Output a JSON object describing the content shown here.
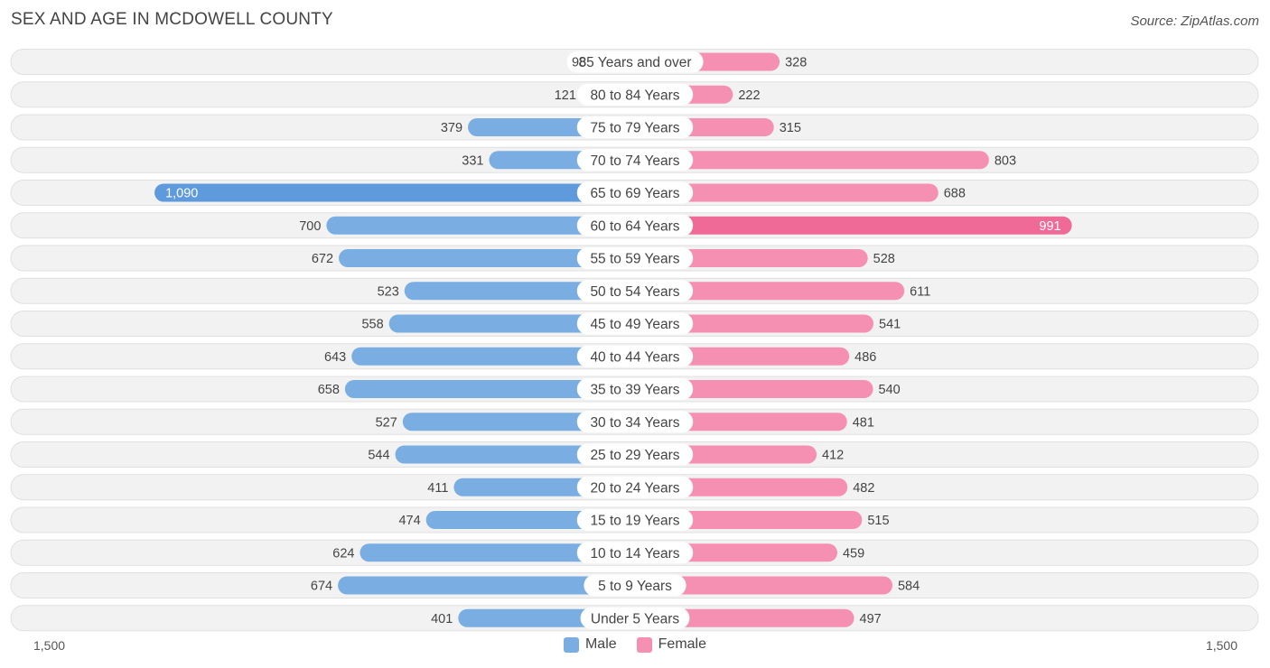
{
  "chart_data": {
    "type": "bar",
    "orientation": "horizontal-diverging",
    "title": "SEX AND AGE IN MCDOWELL COUNTY",
    "source": "Source: ZipAtlas.com",
    "categories": [
      "85 Years and over",
      "80 to 84 Years",
      "75 to 79 Years",
      "70 to 74 Years",
      "65 to 69 Years",
      "60 to 64 Years",
      "55 to 59 Years",
      "50 to 54 Years",
      "45 to 49 Years",
      "40 to 44 Years",
      "35 to 39 Years",
      "30 to 34 Years",
      "25 to 29 Years",
      "20 to 24 Years",
      "15 to 19 Years",
      "10 to 14 Years",
      "5 to 9 Years",
      "Under 5 Years"
    ],
    "series": [
      {
        "name": "Male",
        "color": "#7aaee3",
        "highlight_color": "#5f9bdc",
        "values": [
          98,
          121,
          379,
          331,
          1090,
          700,
          672,
          523,
          558,
          643,
          658,
          527,
          544,
          411,
          474,
          624,
          674,
          401
        ],
        "labels": [
          "98",
          "121",
          "379",
          "331",
          "1,090",
          "700",
          "672",
          "523",
          "558",
          "643",
          "658",
          "527",
          "544",
          "411",
          "474",
          "624",
          "674",
          "401"
        ]
      },
      {
        "name": "Female",
        "color": "#f590b2",
        "highlight_color": "#f06a97",
        "values": [
          328,
          222,
          315,
          803,
          688,
          991,
          528,
          611,
          541,
          486,
          540,
          481,
          412,
          482,
          515,
          459,
          584,
          497
        ],
        "labels": [
          "328",
          "222",
          "315",
          "803",
          "688",
          "991",
          "528",
          "611",
          "541",
          "486",
          "540",
          "481",
          "412",
          "482",
          "515",
          "459",
          "584",
          "497"
        ]
      }
    ],
    "axis": {
      "min_label": "1,500",
      "max_label": "1,500",
      "max_value": 1500
    },
    "legend": {
      "position": "bottom-center",
      "male_label": "Male",
      "female_label": "Female"
    }
  }
}
